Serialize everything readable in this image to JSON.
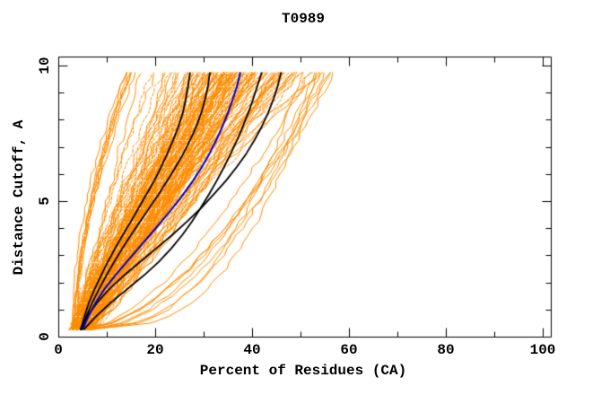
{
  "chart_data": {
    "type": "line",
    "title": "T0989",
    "xlabel": "Percent of Residues (CA)",
    "ylabel": "Distance Cutoff, A",
    "xlim": [
      0,
      100
    ],
    "ylim": [
      0,
      10
    ],
    "grid": false,
    "legend": null,
    "border": true,
    "x_ticks": {
      "major": [
        0,
        20,
        40,
        60,
        80,
        100
      ],
      "minor_step": 10
    },
    "y_ticks": {
      "major": [
        0,
        5,
        10
      ],
      "minor_step": 1
    },
    "cutoffs": [
      0.25,
      0.75,
      1.25,
      1.75,
      2.25,
      2.75,
      3.25,
      3.75,
      4.25,
      4.75,
      5.25,
      5.75,
      6.25,
      6.75,
      7.25,
      7.75,
      8.25,
      8.75,
      9.25,
      9.75
    ],
    "highlighted_series": [
      {
        "name": "black-model-1",
        "color": "#000000",
        "width": 1.8,
        "values": [
          4.6,
          5.4,
          6.3,
          7.5,
          8.8,
          10.2,
          11.7,
          13.3,
          15.0,
          16.6,
          18.2,
          19.8,
          21.2,
          22.5,
          23.7,
          24.8,
          25.7,
          26.3,
          26.8,
          27.2
        ]
      },
      {
        "name": "black-model-2",
        "color": "#000000",
        "width": 1.8,
        "values": [
          4.8,
          5.8,
          7.0,
          8.4,
          9.9,
          11.5,
          13.2,
          15.0,
          16.9,
          18.8,
          20.7,
          22.5,
          24.2,
          25.8,
          27.2,
          28.5,
          29.5,
          30.3,
          30.9,
          31.3
        ]
      },
      {
        "name": "black-model-3",
        "color": "#000000",
        "width": 1.8,
        "values": [
          5.2,
          7.8,
          10.8,
          14.2,
          17.6,
          20.7,
          23.3,
          25.6,
          27.6,
          29.4,
          31.1,
          32.7,
          34.2,
          35.6,
          36.9,
          38.1,
          39.2,
          40.2,
          41.1,
          42.0
        ]
      },
      {
        "name": "black-model-4",
        "color": "#000000",
        "width": 1.8,
        "values": [
          4.5,
          6.0,
          8.0,
          10.5,
          13.5,
          16.8,
          20.2,
          23.5,
          26.6,
          29.5,
          32.1,
          34.6,
          36.8,
          38.8,
          40.5,
          42.0,
          43.3,
          44.4,
          45.3,
          46.0
        ]
      },
      {
        "name": "blue-model",
        "color": "#0000cc",
        "width": 2.0,
        "values": [
          5.0,
          6.2,
          7.7,
          9.5,
          11.7,
          14.1,
          16.5,
          18.9,
          21.3,
          23.6,
          25.8,
          27.8,
          29.6,
          31.2,
          32.6,
          33.9,
          35.0,
          36.0,
          36.9,
          37.6
        ]
      }
    ],
    "ensemble": {
      "name": "server-model-curves",
      "color": "#ff8c00",
      "count": 150,
      "seed": 9,
      "start_pct_range": [
        2.5,
        8.0
      ],
      "final_pct_range": [
        13.5,
        57.0
      ],
      "d_range": [
        0.25,
        9.75
      ],
      "d_step": 0.25,
      "texture": "white-dotted-rows"
    },
    "axis_color": "#000000",
    "background": "#ffffff"
  }
}
